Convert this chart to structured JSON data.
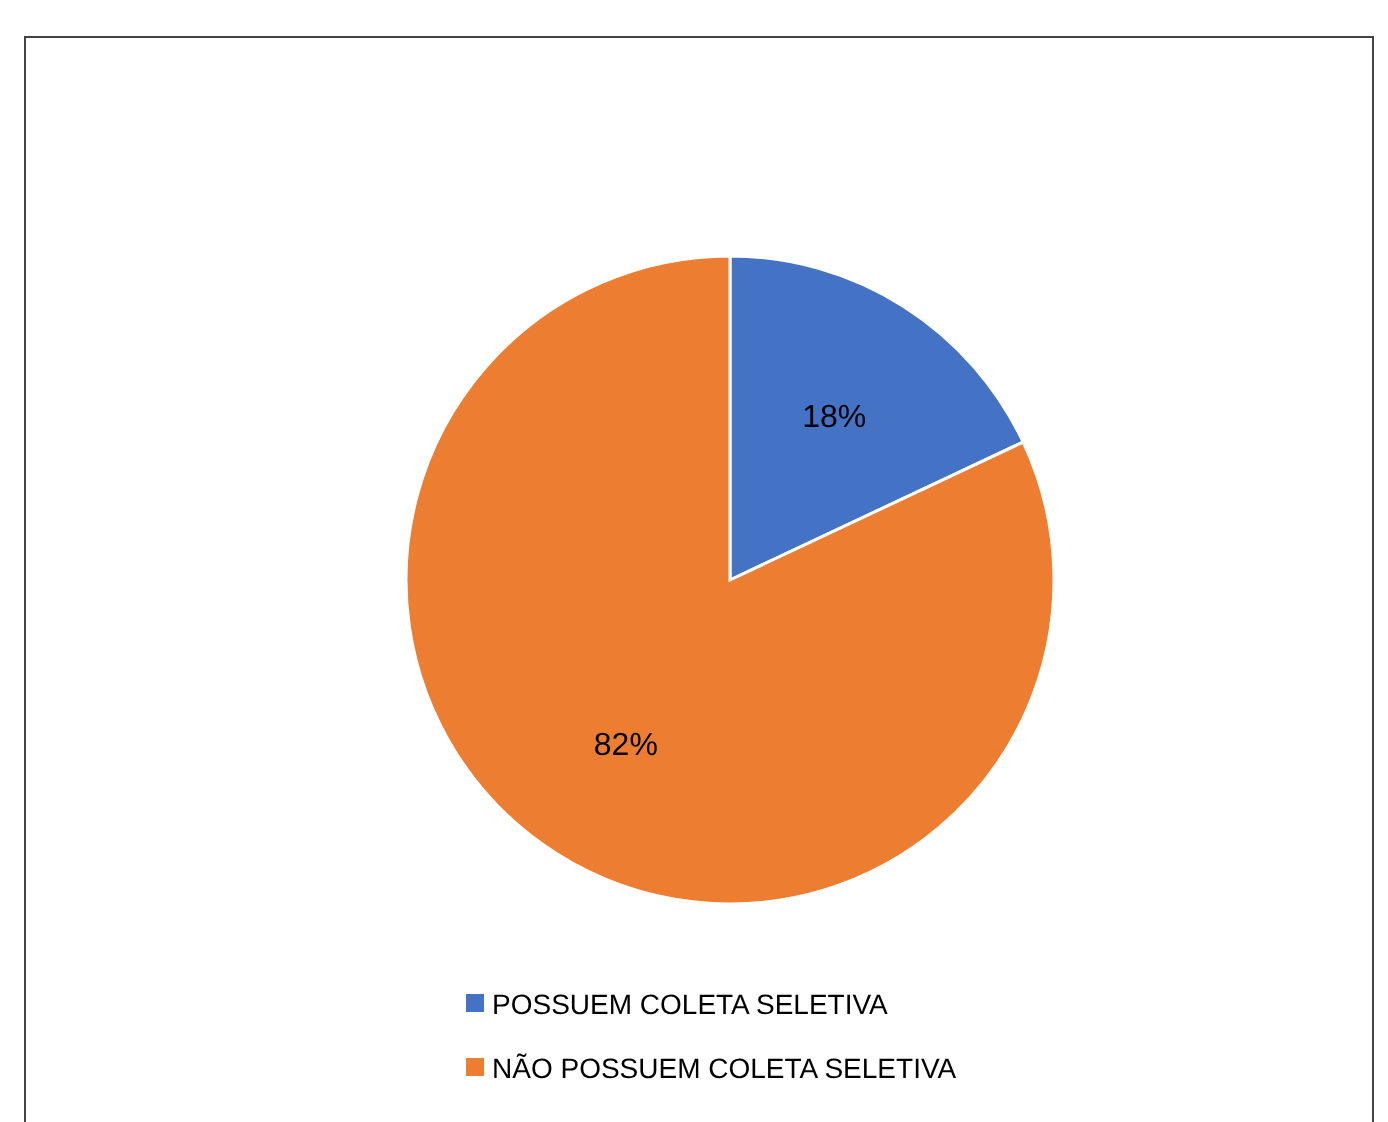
{
  "chart_data": {
    "type": "pie",
    "categories": [
      "POSSUEM COLETA SELETIVA",
      "NÃO POSSUEM COLETA SELETIVA"
    ],
    "values": [
      18,
      82
    ],
    "colors": [
      "#4472c4",
      "#ed7d31"
    ],
    "value_labels": [
      "18%",
      "82%"
    ],
    "legend": "bottom"
  }
}
